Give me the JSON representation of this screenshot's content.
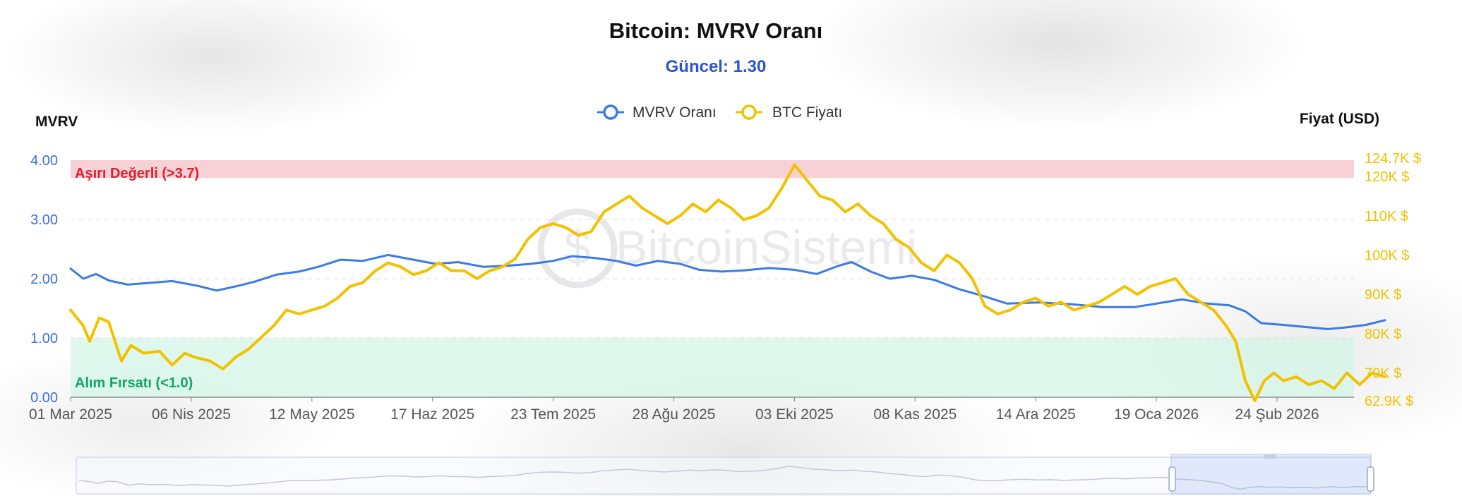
{
  "chart_data": {
    "type": "line",
    "title": "Bitcoin: MVRV Oranı",
    "subtitle": "Güncel: 1.30",
    "y_left_label": "MVRV",
    "y_right_label": "Fiyat (USD)",
    "y_left_range": [
      0,
      4
    ],
    "y_left_ticks": [
      "4.00",
      "3.00",
      "2.00",
      "1.00",
      "0.00"
    ],
    "y_right_range": [
      62.9,
      124.7
    ],
    "y_right_ticks": [
      {
        "label": "124.7K $",
        "value": 124.7
      },
      {
        "label": "120K $",
        "value": 120
      },
      {
        "label": "110K $",
        "value": 110
      },
      {
        "label": "100K $",
        "value": 100
      },
      {
        "label": "90K $",
        "value": 90
      },
      {
        "label": "80K $",
        "value": 80
      },
      {
        "label": "70K $",
        "value": 70
      },
      {
        "label": "62.9K $",
        "value": 62.9
      }
    ],
    "x_ticks": [
      "01 Mar 2025",
      "06 Nis 2025",
      "12 May 2025",
      "17 Haz 2025",
      "23 Tem 2025",
      "28 Ağu 2025",
      "03 Eki 2025",
      "08 Kas 2025",
      "14 Ara 2025",
      "19 Oca 2026",
      "24 Şub 2026"
    ],
    "x_range_days": [
      0,
      380
    ],
    "zones": [
      {
        "label": "Aşırı Değerli (>3.7)",
        "from": 3.7,
        "to": 4.0,
        "color": "#f7c9cf"
      },
      {
        "label": "Alım Fırsatı (<1.0)",
        "from": 0.0,
        "to": 1.0,
        "color": "#d3f5e8"
      }
    ],
    "legend_position": "top-center",
    "grid": true,
    "series": [
      {
        "name": "MVRV Oranı",
        "axis": "left",
        "color": "#3a7be6",
        "points": [
          [
            0,
            2.17
          ],
          [
            4,
            2.0
          ],
          [
            8,
            2.08
          ],
          [
            12,
            1.97
          ],
          [
            18,
            1.9
          ],
          [
            25,
            1.93
          ],
          [
            32,
            1.96
          ],
          [
            40,
            1.88
          ],
          [
            46,
            1.8
          ],
          [
            52,
            1.87
          ],
          [
            58,
            1.95
          ],
          [
            65,
            2.07
          ],
          [
            72,
            2.12
          ],
          [
            78,
            2.2
          ],
          [
            85,
            2.32
          ],
          [
            92,
            2.3
          ],
          [
            100,
            2.4
          ],
          [
            108,
            2.32
          ],
          [
            115,
            2.25
          ],
          [
            122,
            2.28
          ],
          [
            130,
            2.2
          ],
          [
            138,
            2.22
          ],
          [
            145,
            2.25
          ],
          [
            152,
            2.3
          ],
          [
            158,
            2.38
          ],
          [
            165,
            2.35
          ],
          [
            172,
            2.3
          ],
          [
            178,
            2.22
          ],
          [
            185,
            2.3
          ],
          [
            192,
            2.25
          ],
          [
            198,
            2.15
          ],
          [
            205,
            2.12
          ],
          [
            212,
            2.14
          ],
          [
            220,
            2.18
          ],
          [
            228,
            2.15
          ],
          [
            235,
            2.08
          ],
          [
            242,
            2.22
          ],
          [
            246,
            2.28
          ],
          [
            252,
            2.12
          ],
          [
            258,
            2.0
          ],
          [
            265,
            2.05
          ],
          [
            272,
            1.98
          ],
          [
            280,
            1.82
          ],
          [
            288,
            1.7
          ],
          [
            295,
            1.58
          ],
          [
            305,
            1.6
          ],
          [
            315,
            1.57
          ],
          [
            325,
            1.52
          ],
          [
            335,
            1.52
          ],
          [
            342,
            1.58
          ],
          [
            350,
            1.65
          ],
          [
            358,
            1.58
          ],
          [
            365,
            1.55
          ],
          [
            370,
            1.45
          ],
          [
            375,
            1.25
          ],
          [
            382,
            1.22
          ],
          [
            390,
            1.18
          ],
          [
            396,
            1.15
          ],
          [
            402,
            1.18
          ],
          [
            408,
            1.22
          ],
          [
            414,
            1.3
          ]
        ]
      },
      {
        "name": "BTC Fiyatı",
        "axis": "right",
        "color": "#f2c200",
        "points": [
          [
            0,
            86
          ],
          [
            4,
            82
          ],
          [
            6,
            78
          ],
          [
            9,
            84
          ],
          [
            12,
            83
          ],
          [
            16,
            73
          ],
          [
            19,
            77
          ],
          [
            23,
            75
          ],
          [
            28,
            75.5
          ],
          [
            32,
            72
          ],
          [
            36,
            75
          ],
          [
            39,
            74
          ],
          [
            44,
            73
          ],
          [
            48,
            71
          ],
          [
            52,
            74
          ],
          [
            56,
            76
          ],
          [
            60,
            79
          ],
          [
            64,
            82
          ],
          [
            68,
            86
          ],
          [
            72,
            85
          ],
          [
            76,
            86
          ],
          [
            80,
            87
          ],
          [
            84,
            89
          ],
          [
            88,
            92
          ],
          [
            92,
            93
          ],
          [
            96,
            96
          ],
          [
            100,
            98
          ],
          [
            104,
            97
          ],
          [
            108,
            95
          ],
          [
            112,
            96
          ],
          [
            116,
            98
          ],
          [
            120,
            96
          ],
          [
            124,
            96
          ],
          [
            128,
            94
          ],
          [
            132,
            96
          ],
          [
            136,
            97
          ],
          [
            140,
            99
          ],
          [
            144,
            104
          ],
          [
            148,
            107
          ],
          [
            152,
            108
          ],
          [
            156,
            107
          ],
          [
            160,
            105
          ],
          [
            164,
            106
          ],
          [
            168,
            111
          ],
          [
            172,
            113
          ],
          [
            176,
            115
          ],
          [
            180,
            112
          ],
          [
            184,
            110
          ],
          [
            188,
            108
          ],
          [
            192,
            110
          ],
          [
            196,
            113
          ],
          [
            200,
            111
          ],
          [
            204,
            114
          ],
          [
            208,
            112
          ],
          [
            212,
            109
          ],
          [
            216,
            110
          ],
          [
            220,
            112
          ],
          [
            224,
            117
          ],
          [
            228,
            123
          ],
          [
            232,
            119
          ],
          [
            236,
            115
          ],
          [
            240,
            114
          ],
          [
            244,
            111
          ],
          [
            248,
            113
          ],
          [
            252,
            110
          ],
          [
            256,
            108
          ],
          [
            260,
            104
          ],
          [
            264,
            102
          ],
          [
            268,
            98
          ],
          [
            272,
            96
          ],
          [
            276,
            100
          ],
          [
            280,
            98
          ],
          [
            284,
            94
          ],
          [
            288,
            87
          ],
          [
            292,
            85
          ],
          [
            296,
            86
          ],
          [
            300,
            88
          ],
          [
            304,
            89
          ],
          [
            308,
            87
          ],
          [
            312,
            88
          ],
          [
            316,
            86
          ],
          [
            320,
            87
          ],
          [
            324,
            88
          ],
          [
            328,
            90
          ],
          [
            332,
            92
          ],
          [
            336,
            90
          ],
          [
            340,
            92
          ],
          [
            344,
            93
          ],
          [
            348,
            94
          ],
          [
            352,
            90
          ],
          [
            356,
            88
          ],
          [
            360,
            86
          ],
          [
            364,
            82
          ],
          [
            367,
            78
          ],
          [
            370,
            68
          ],
          [
            373,
            62.9
          ],
          [
            376,
            68
          ],
          [
            379,
            70
          ],
          [
            382,
            68
          ],
          [
            386,
            69
          ],
          [
            390,
            67
          ],
          [
            394,
            68
          ],
          [
            398,
            66
          ],
          [
            402,
            70
          ],
          [
            406,
            67
          ],
          [
            410,
            70
          ],
          [
            414,
            69
          ]
        ]
      }
    ],
    "x_max_days": 414
  },
  "watermark": "BitcoinSistemi"
}
